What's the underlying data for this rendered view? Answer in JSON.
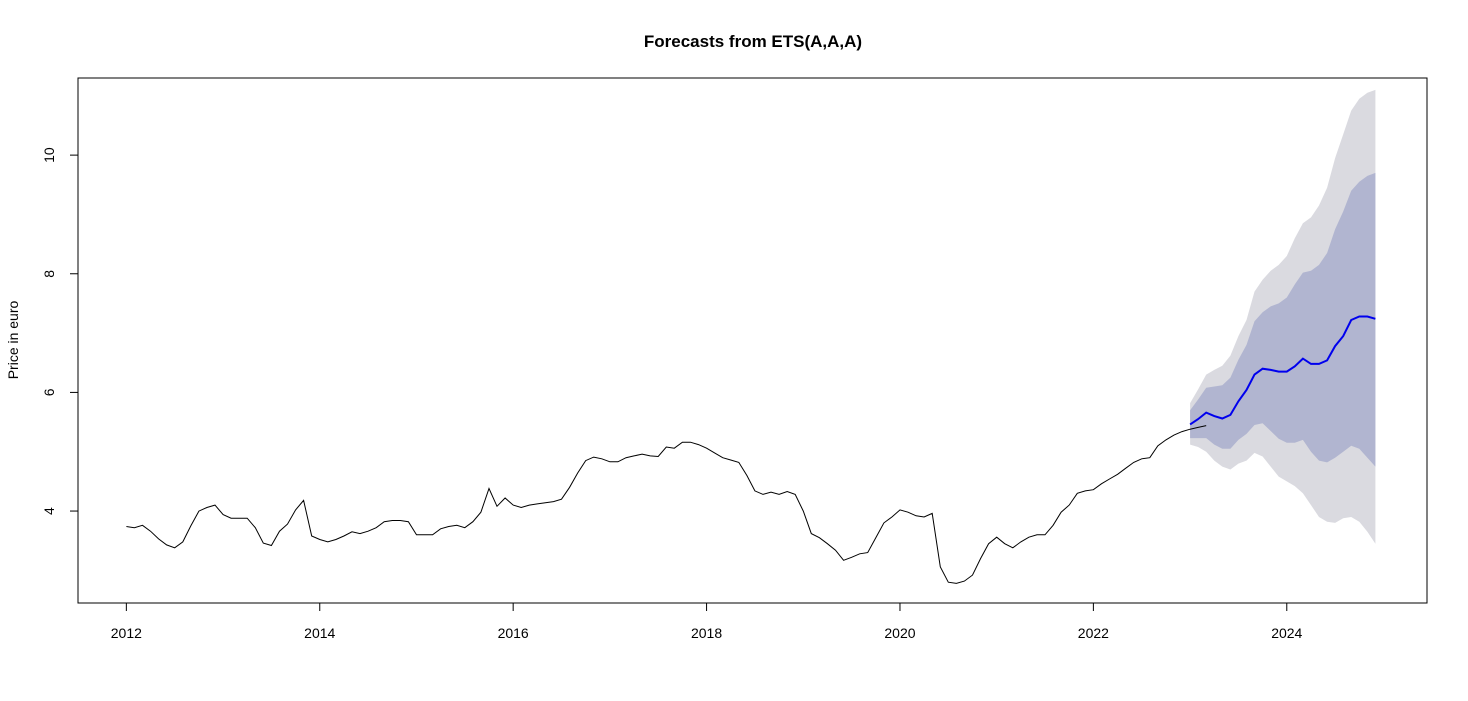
{
  "chart_data": {
    "type": "line",
    "title": "Forecasts from ETS(A,A,A)",
    "xlabel": "",
    "ylabel": "Price in euro",
    "xlim": [
      2011.5,
      2025.45
    ],
    "ylim": [
      2.45,
      11.3
    ],
    "xticks": [
      2012,
      2014,
      2016,
      2018,
      2020,
      2022,
      2024
    ],
    "yticks": [
      4,
      6,
      8,
      10
    ],
    "grid": false,
    "legend": "none",
    "colors": {
      "history": "#000000",
      "forecast": "#0000ee",
      "band80": "#b1b5d0",
      "band95": "#dadae0"
    },
    "history": {
      "start": 2012,
      "frequency": 12,
      "values": [
        3.74,
        3.72,
        3.76,
        3.66,
        3.53,
        3.43,
        3.38,
        3.48,
        3.75,
        4.0,
        4.06,
        4.1,
        3.94,
        3.88,
        3.88,
        3.88,
        3.72,
        3.46,
        3.42,
        3.66,
        3.78,
        4.02,
        4.18,
        3.58,
        3.52,
        3.48,
        3.52,
        3.58,
        3.65,
        3.62,
        3.66,
        3.72,
        3.82,
        3.84,
        3.84,
        3.82,
        3.6,
        3.6,
        3.6,
        3.7,
        3.74,
        3.76,
        3.72,
        3.82,
        3.98,
        4.38,
        4.08,
        4.22,
        4.1,
        4.06,
        4.1,
        4.12,
        4.14,
        4.16,
        4.2,
        4.4,
        4.64,
        4.85,
        4.91,
        4.88,
        4.83,
        4.83,
        4.9,
        4.93,
        4.96,
        4.93,
        4.92,
        5.08,
        5.06,
        5.16,
        5.16,
        5.12,
        5.06,
        4.98,
        4.9,
        4.86,
        4.82,
        4.6,
        4.34,
        4.28,
        4.32,
        4.28,
        4.33,
        4.28,
        4.0,
        3.62,
        3.55,
        3.45,
        3.34,
        3.17,
        3.22,
        3.28,
        3.3,
        3.55,
        3.8,
        3.9,
        4.02,
        3.98,
        3.92,
        3.9,
        3.96,
        3.06,
        2.8,
        2.78,
        2.82,
        2.92,
        3.2,
        3.45,
        3.56,
        3.45,
        3.38,
        3.48,
        3.56,
        3.6,
        3.6,
        3.76,
        3.98,
        4.1,
        4.3,
        4.34,
        4.36,
        4.46,
        4.54,
        4.62,
        4.72,
        4.82,
        4.88,
        4.9,
        5.1,
        5.2,
        5.28,
        5.34,
        5.38,
        5.41,
        5.44
      ]
    },
    "forecast": {
      "start": 2023,
      "frequency": 12,
      "mean": [
        5.46,
        5.55,
        5.66,
        5.6,
        5.56,
        5.62,
        5.85,
        6.04,
        6.3,
        6.4,
        6.38,
        6.35,
        6.35,
        6.44,
        6.57,
        6.48,
        6.48,
        6.54,
        6.78,
        6.95,
        7.22,
        7.28,
        7.28,
        7.24
      ],
      "lo80": [
        5.23,
        5.23,
        5.23,
        5.12,
        5.05,
        5.05,
        5.2,
        5.3,
        5.45,
        5.48,
        5.35,
        5.22,
        5.15,
        5.15,
        5.2,
        5.0,
        4.85,
        4.82,
        4.9,
        5.0,
        5.1,
        5.05,
        4.9,
        4.75
      ],
      "hi80": [
        5.7,
        5.88,
        6.08,
        6.1,
        6.12,
        6.25,
        6.55,
        6.8,
        7.2,
        7.35,
        7.45,
        7.5,
        7.6,
        7.82,
        8.02,
        8.05,
        8.15,
        8.35,
        8.75,
        9.05,
        9.4,
        9.55,
        9.65,
        9.7
      ],
      "lo95": [
        5.12,
        5.08,
        5.0,
        4.85,
        4.75,
        4.7,
        4.8,
        4.85,
        4.98,
        4.92,
        4.75,
        4.58,
        4.5,
        4.42,
        4.3,
        4.1,
        3.9,
        3.82,
        3.8,
        3.88,
        3.9,
        3.82,
        3.65,
        3.45
      ],
      "hi95": [
        5.82,
        6.05,
        6.3,
        6.38,
        6.45,
        6.62,
        6.95,
        7.22,
        7.7,
        7.9,
        8.05,
        8.15,
        8.3,
        8.6,
        8.85,
        8.95,
        9.15,
        9.45,
        9.95,
        10.35,
        10.75,
        10.95,
        11.05,
        11.1
      ]
    }
  }
}
